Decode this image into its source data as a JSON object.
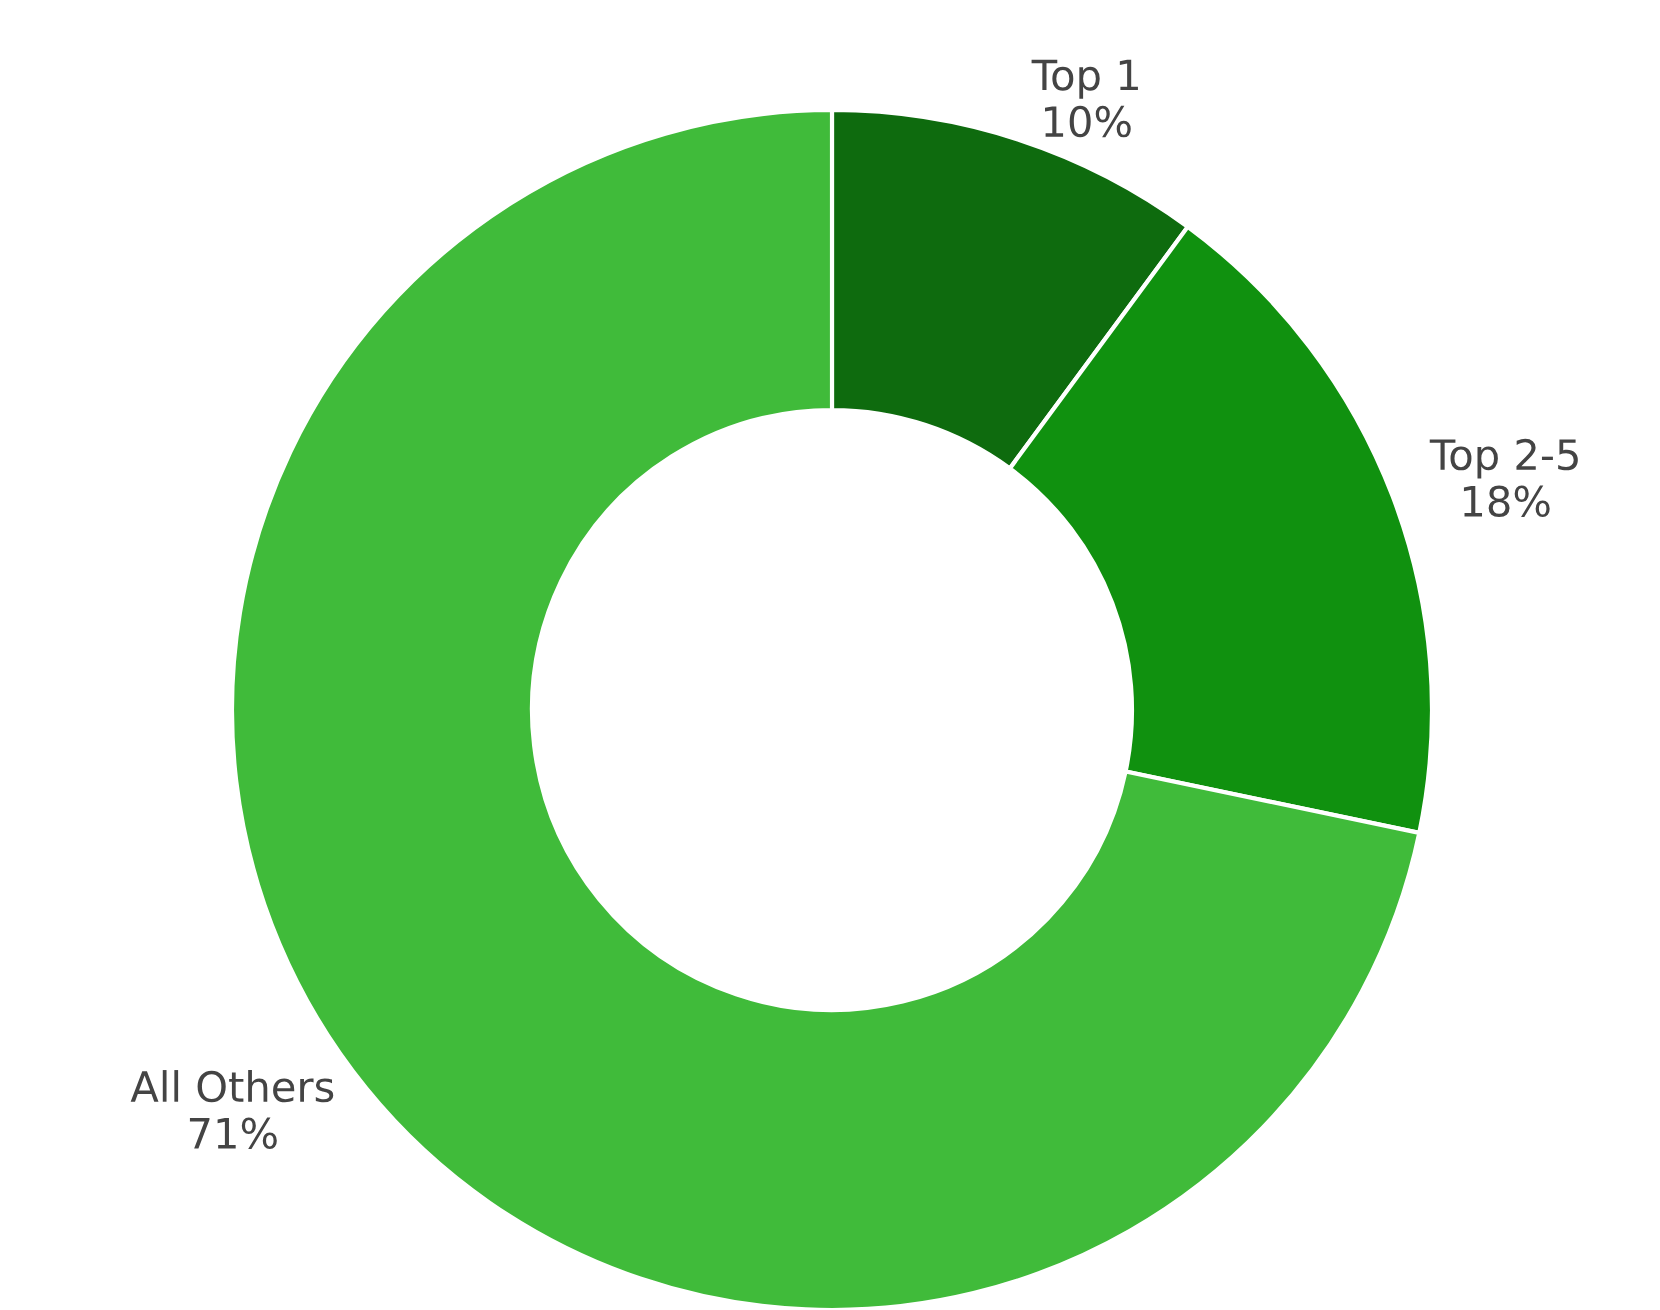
{
  "chart_data": {
    "type": "donut",
    "categories": [
      "Top 1",
      "Top 2-5",
      "All Others"
    ],
    "values": [
      10,
      18,
      71
    ],
    "colors": [
      "#0e6b0e",
      "#10910f",
      "#40bb3a"
    ],
    "value_labels": [
      "10%",
      "18%",
      "71%"
    ],
    "legend": false
  }
}
